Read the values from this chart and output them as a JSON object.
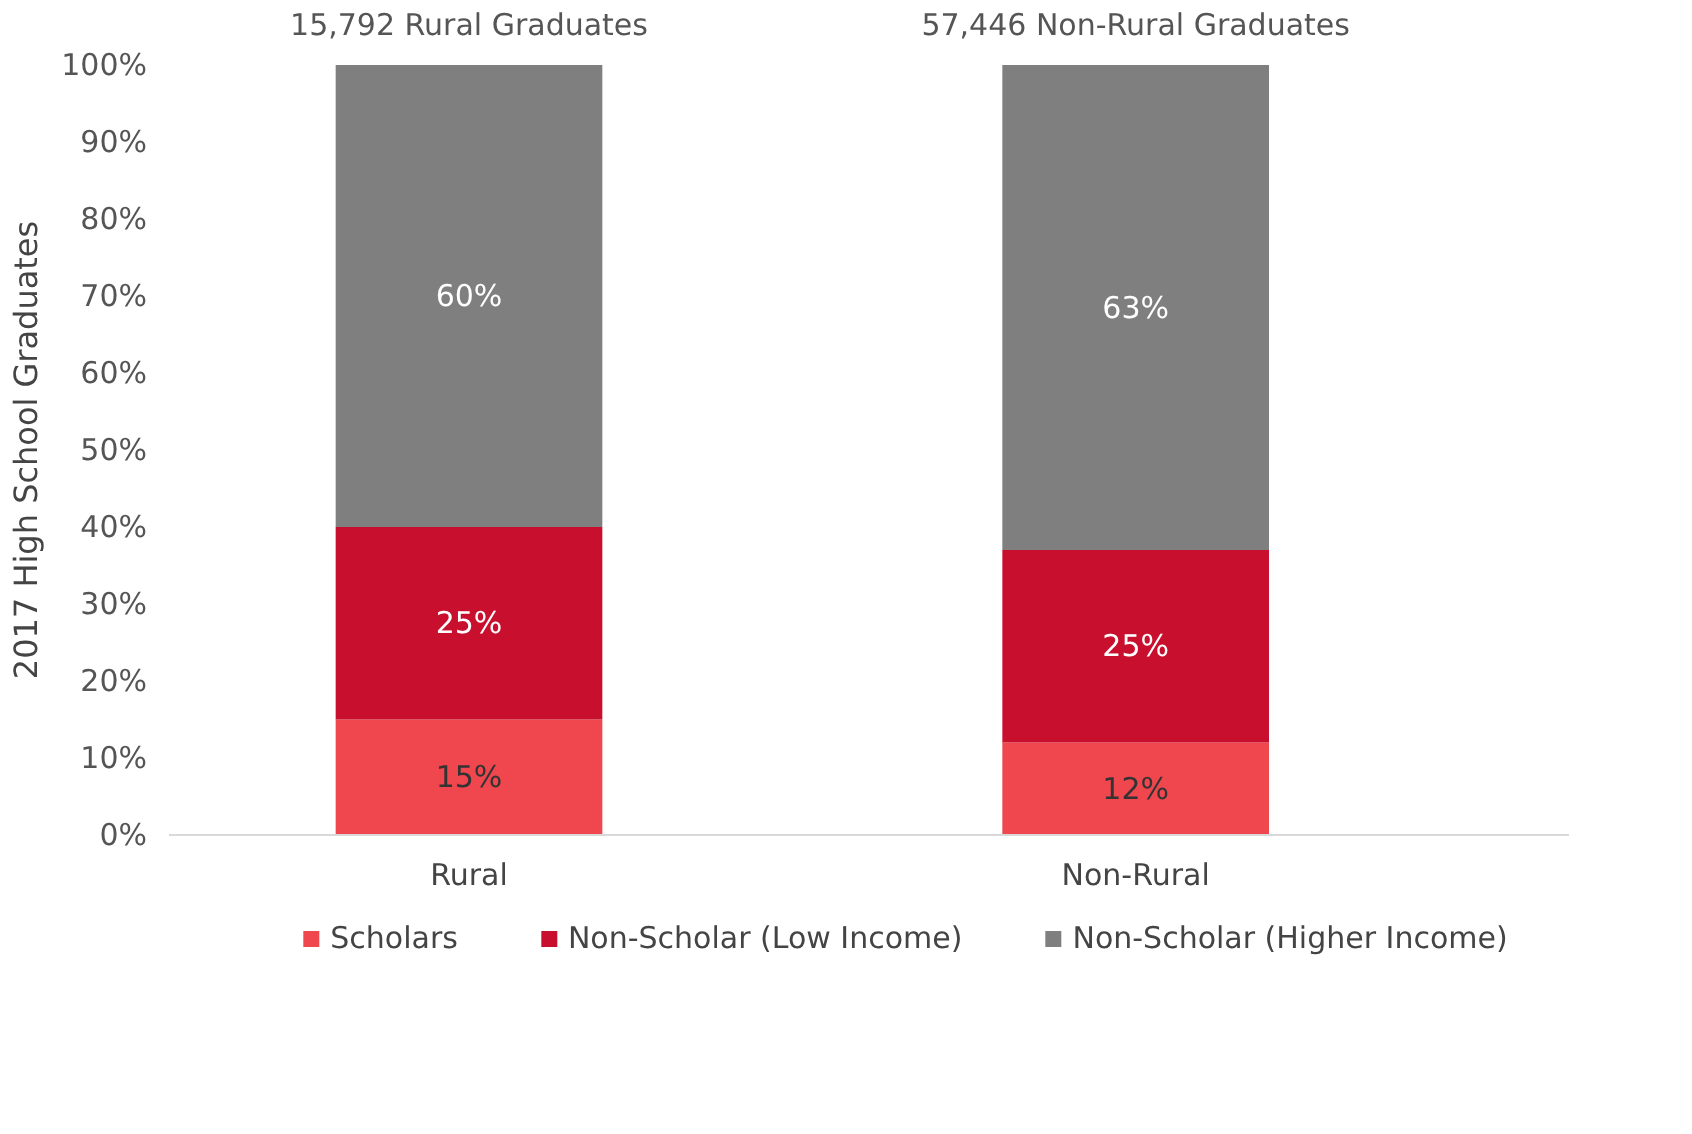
{
  "chart_data": {
    "type": "bar",
    "stacked": true,
    "categories": [
      "Rural",
      "Non-Rural"
    ],
    "series": [
      {
        "name": "Scholars",
        "color": "#f0474f",
        "values": [
          15,
          12
        ],
        "value_labels": [
          "15%",
          "12%"
        ]
      },
      {
        "name": "Non-Scholar (Low Income)",
        "color": "#c8102e",
        "values": [
          25,
          25
        ],
        "value_labels": [
          "25%",
          "25%"
        ]
      },
      {
        "name": "Non-Scholar (Higher Income)",
        "color": "#7f7f7f",
        "values": [
          60,
          63
        ],
        "value_labels": [
          "60%",
          "63%"
        ]
      }
    ],
    "ylabel": "2017 High School Graduates",
    "ylim": [
      0,
      100
    ],
    "yticks": [
      {
        "value": 0,
        "label": "0%"
      },
      {
        "value": 10,
        "label": "10%"
      },
      {
        "value": 20,
        "label": "20%"
      },
      {
        "value": 30,
        "label": "30%"
      },
      {
        "value": 40,
        "label": "40%"
      },
      {
        "value": 50,
        "label": "50%"
      },
      {
        "value": 60,
        "label": "60%"
      },
      {
        "value": 70,
        "label": "70%"
      },
      {
        "value": 80,
        "label": "80%"
      },
      {
        "value": 90,
        "label": "90%"
      },
      {
        "value": 100,
        "label": "100%"
      }
    ],
    "grid": false,
    "legend": "bottom",
    "annotations": [
      "15,792 Rural Graduates",
      "57,446 Non-Rural Graduates"
    ]
  }
}
